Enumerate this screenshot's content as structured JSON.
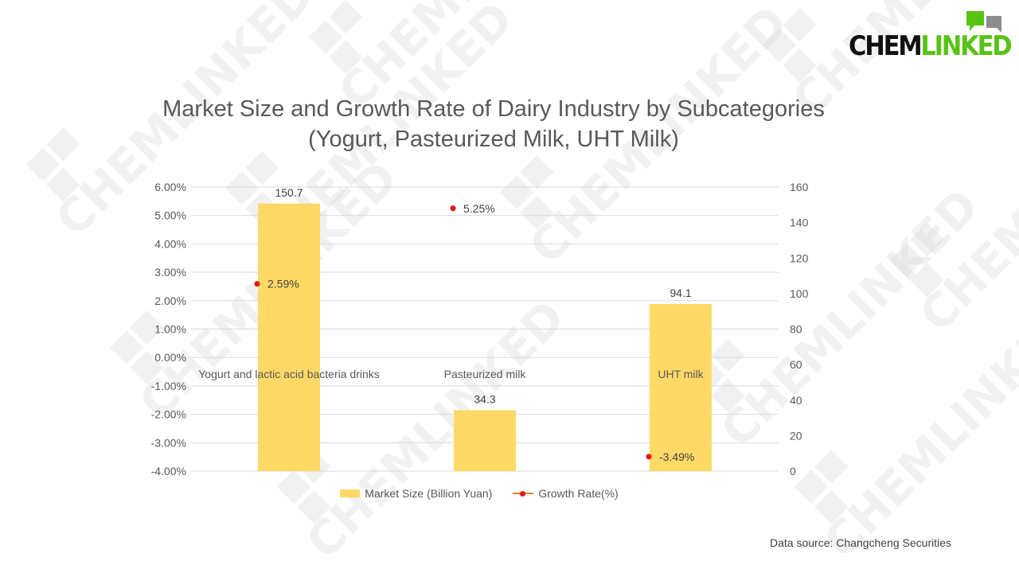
{
  "watermark_text": "CHEMLINKED",
  "logo": {
    "part1": "CHEM",
    "part2": "LINKED"
  },
  "colors": {
    "bar": "#ffd966",
    "marker": "#e31a1c",
    "line": "#ed7d31",
    "brand_green": "#58c315",
    "brand_gray": "#8c8c8c"
  },
  "chart_data": {
    "type": "bar",
    "title": [
      "Market Size and Growth Rate of Dairy Industry by Subcategories",
      "(Yogurt, Pasteurized Milk, UHT Milk)"
    ],
    "categories": [
      "Yogurt and lactic acid bacteria drinks",
      "Pasteurized milk",
      "UHT milk"
    ],
    "series": [
      {
        "name": "Market Size (Billion Yuan)",
        "kind": "bar",
        "axis": "right",
        "values": [
          150.7,
          34.3,
          94.1
        ],
        "labels": [
          "150.7",
          "34.3",
          "94.1"
        ]
      },
      {
        "name": "Growth Rate(%)",
        "kind": "scatter",
        "axis": "left",
        "values": [
          2.59,
          5.25,
          -3.49
        ],
        "labels": [
          "2.59%",
          "5.25%",
          "-3.49%"
        ]
      }
    ],
    "left_axis": {
      "min": -4,
      "max": 6,
      "step": 1,
      "ticks": [
        "6.00%",
        "5.00%",
        "4.00%",
        "3.00%",
        "2.00%",
        "1.00%",
        "0.00%",
        "-1.00%",
        "-2.00%",
        "-3.00%",
        "-4.00%"
      ]
    },
    "right_axis": {
      "min": 0,
      "max": 160,
      "step": 20,
      "ticks": [
        "160",
        "140",
        "120",
        "100",
        "80",
        "60",
        "40",
        "20",
        "0"
      ]
    },
    "grid": true,
    "legend_position": "bottom"
  },
  "source": "Data source: Changcheng Securities"
}
